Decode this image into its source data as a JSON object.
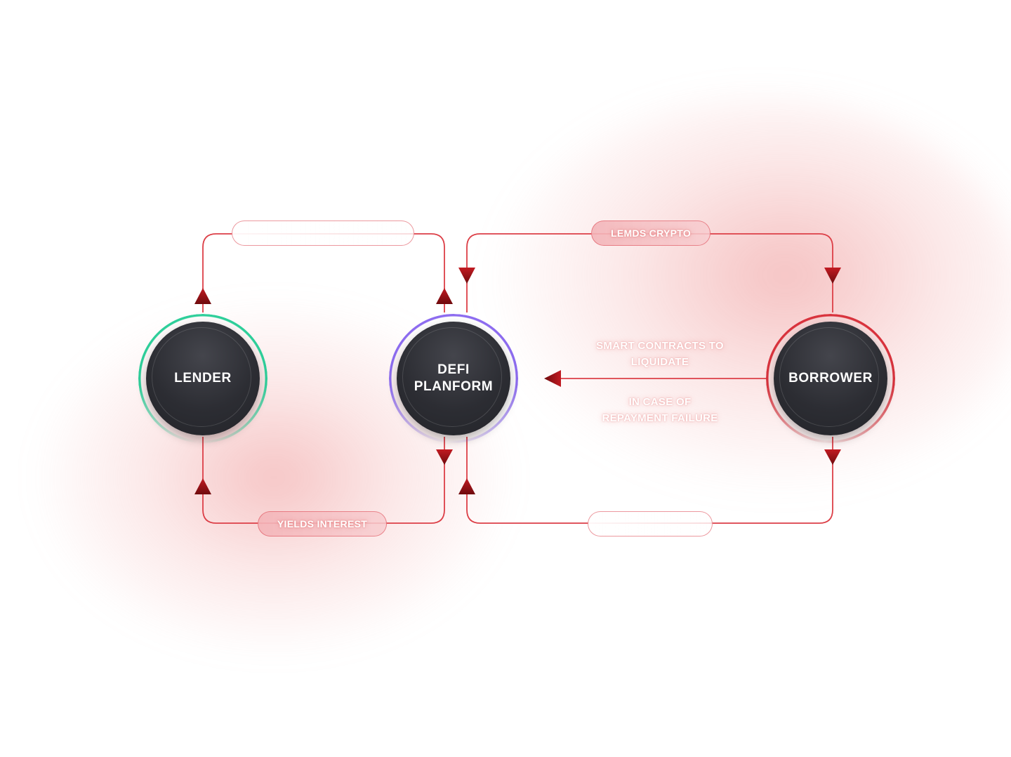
{
  "nodes": {
    "lender": {
      "label": "LENDER"
    },
    "defi": {
      "label": "DEFI\nPLANFORM"
    },
    "borrower": {
      "label": "BORROWER"
    }
  },
  "connectors": {
    "lender_to_defi_top": {
      "label": ""
    },
    "defi_to_lender_bottom": {
      "label": "YIELDS INTEREST"
    },
    "defi_to_borrower_top": {
      "label": "LEMDS CRYPTO"
    },
    "borrower_to_defi_bottom": {
      "label": ""
    }
  },
  "liquidation": {
    "line1": "SMART CONTRACTS TO\nLIQUIDATE",
    "line2": "IN CASE OF\nREPAYMENT FAILURE"
  },
  "colors": {
    "wire": "#dc3f47",
    "arrow": "#8e0f12",
    "lender_ring": "#2ecf9a",
    "defi_ring": "#8d6cf0",
    "borrower_ring": "#d9333d",
    "node_fill": "#2c2d33"
  }
}
